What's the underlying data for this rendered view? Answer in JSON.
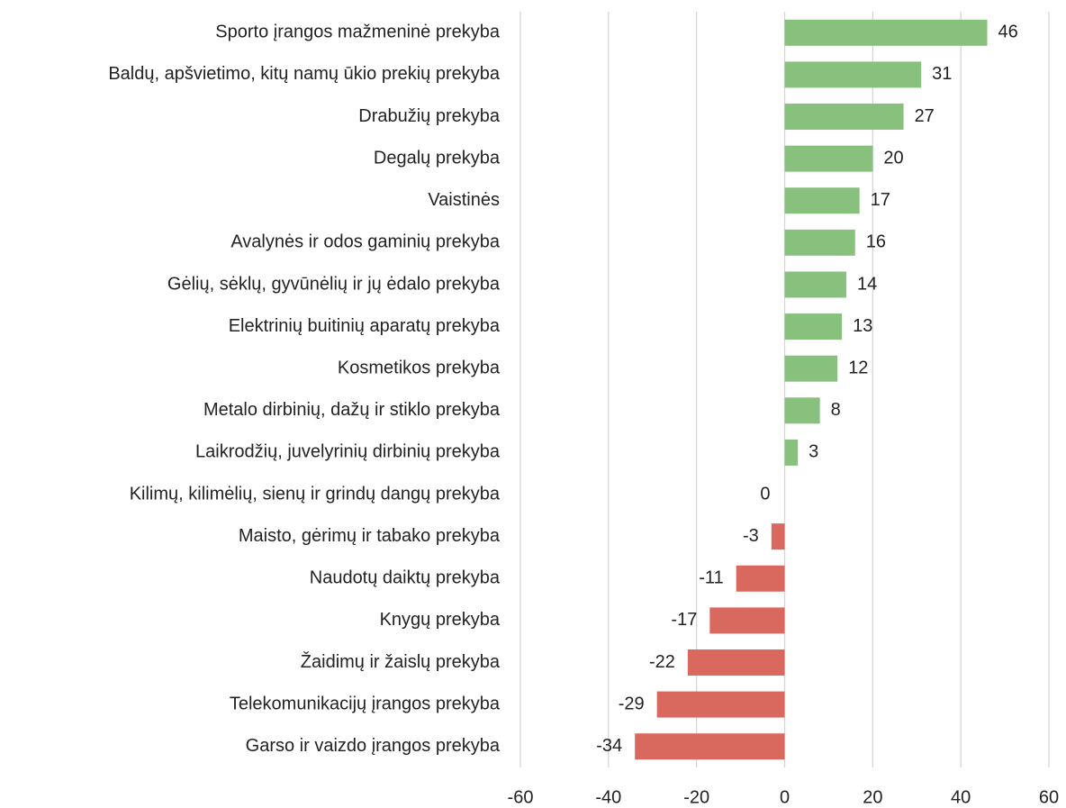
{
  "chart_data": {
    "type": "barh",
    "categories": [
      "Sporto įrangos mažmeninė prekyba",
      "Baldų, apšvietimo, kitų namų ūkio prekių prekyba",
      "Drabužių prekyba",
      "Degalų prekyba",
      "Vaistinės",
      "Avalynės ir odos gaminių prekyba",
      "Gėlių, sėklų, gyvūnėlių ir jų ėdalo prekyba",
      "Elektrinių buitinių aparatų prekyba",
      "Kosmetikos prekyba",
      "Metalo dirbinių, dažų ir stiklo prekyba",
      "Laikrodžių, juvelyrinių dirbinių prekyba",
      "Kilimų, kilimėlių, sienų ir grindų dangų prekyba",
      "Maisto, gėrimų ir tabako prekyba",
      "Naudotų daiktų prekyba",
      "Knygų prekyba",
      "Žaidimų ir žaislų prekyba",
      "Telekomunikacijų įrangos prekyba",
      "Garso ir vaizdo įrangos prekyba"
    ],
    "values": [
      46,
      31,
      27,
      20,
      17,
      16,
      14,
      13,
      12,
      8,
      3,
      0,
      -3,
      -11,
      -17,
      -22,
      -29,
      -34
    ],
    "color_positive": "#88c17e",
    "color_negative": "#d9695f",
    "xlim": [
      -60,
      60
    ],
    "xticks": [
      -60,
      -40,
      -20,
      0,
      20,
      40,
      60
    ],
    "grid": true
  }
}
